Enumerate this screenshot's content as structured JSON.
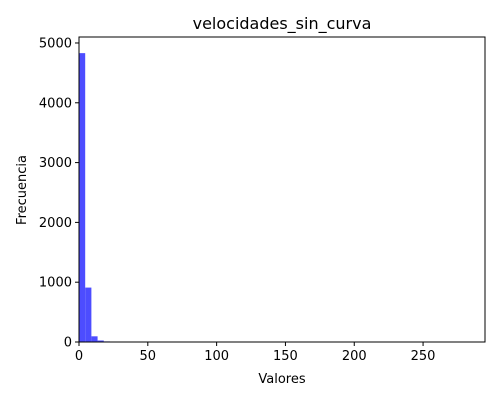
{
  "chart_data": {
    "type": "bar",
    "title": "velocidades_sin_curva",
    "xlabel": "Valores",
    "ylabel": "Frecuencia",
    "xlim": [
      0,
      295
    ],
    "ylim": [
      0,
      5100
    ],
    "x_ticks": [
      0,
      50,
      100,
      150,
      200,
      250
    ],
    "y_ticks": [
      0,
      1000,
      2000,
      3000,
      4000,
      5000
    ],
    "bar_color": "#4d4dff",
    "grid": false,
    "bins": [
      {
        "x0": 0,
        "x1": 4.5,
        "value": 4830
      },
      {
        "x0": 4.5,
        "x1": 9,
        "value": 910
      },
      {
        "x0": 9,
        "x1": 13.5,
        "value": 95
      },
      {
        "x0": 13.5,
        "x1": 18,
        "value": 25
      },
      {
        "x0": 18,
        "x1": 22.5,
        "value": 10
      },
      {
        "x0": 22.5,
        "x1": 27,
        "value": 3
      },
      {
        "x0": 27,
        "x1": 31.5,
        "value": 1
      }
    ]
  }
}
